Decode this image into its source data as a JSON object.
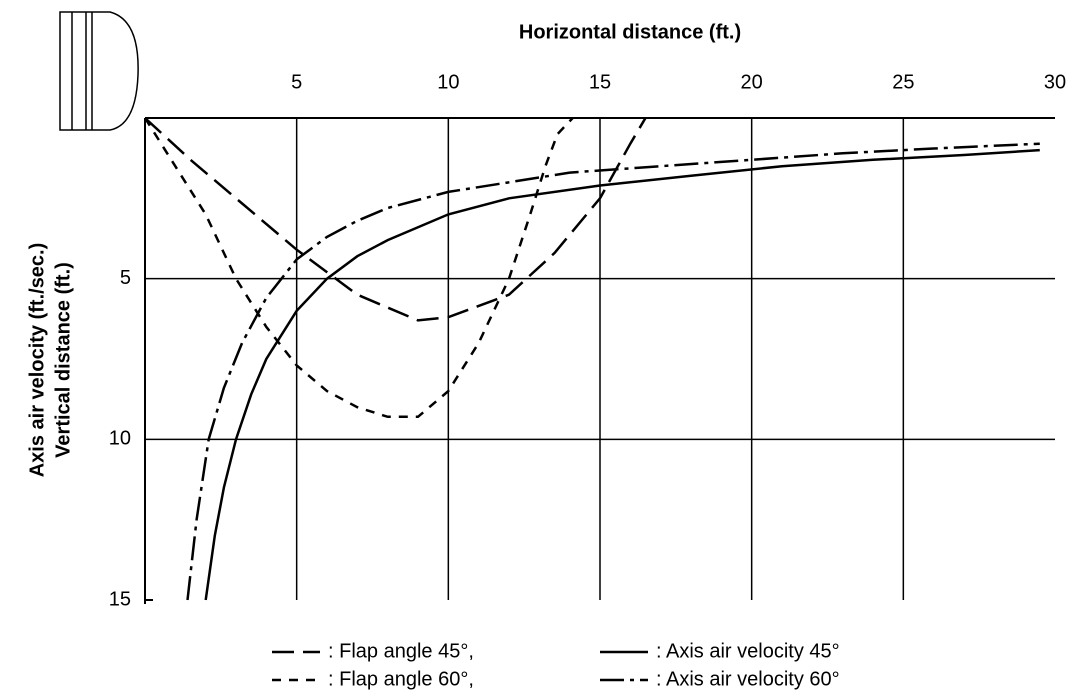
{
  "chart_data": {
    "type": "line",
    "x_label": "Horizontal distance (ft.)",
    "y_label": [
      "Axis air velocity (ft./sec.)",
      "Vertical distance (ft.)"
    ],
    "xlim": [
      0,
      30
    ],
    "ylim": [
      0,
      15
    ],
    "y_inverted": true,
    "xticks": [
      5,
      10,
      15,
      20,
      25,
      30
    ],
    "yticks": [
      5,
      10,
      15
    ],
    "grid": true,
    "series": [
      {
        "name": ": Flap angle 45°,",
        "color": "#000000",
        "style": "long-dash",
        "x": [
          0,
          1.5,
          3,
          5,
          7,
          9,
          10,
          12,
          13.5,
          15,
          16,
          16.5
        ],
        "values": [
          0,
          1.3,
          2.5,
          4.1,
          5.5,
          6.3,
          6.2,
          5.5,
          4.2,
          2.5,
          0.8,
          0
        ]
      },
      {
        "name": ": Flap angle 60°,",
        "color": "#000000",
        "style": "short-dash",
        "x": [
          0,
          1,
          2,
          3,
          4,
          5,
          6,
          7,
          8,
          9,
          10,
          11,
          12,
          12.7,
          13.2,
          13.6,
          14.1
        ],
        "values": [
          0,
          1.5,
          3,
          5,
          6.5,
          7.7,
          8.5,
          9,
          9.3,
          9.3,
          8.5,
          7,
          5,
          3,
          1.5,
          0.5,
          0
        ]
      },
      {
        "name": ": Axis air velocity 45°",
        "color": "#000000",
        "style": "solid",
        "x": [
          2,
          2.3,
          2.6,
          3,
          3.5,
          4,
          5,
          6,
          7,
          8,
          10,
          12,
          15,
          18,
          21,
          24,
          27,
          29.5
        ],
        "values": [
          15,
          13,
          11.5,
          10,
          8.6,
          7.5,
          6,
          5,
          4.3,
          3.8,
          3,
          2.5,
          2.1,
          1.8,
          1.5,
          1.3,
          1.15,
          1
        ]
      },
      {
        "name": ": Axis air velocity 60°",
        "color": "#000000",
        "style": "dash-dot",
        "x": [
          1.4,
          1.7,
          2.1,
          2.6,
          3.2,
          4,
          5,
          6,
          7,
          8,
          10,
          12,
          14,
          17,
          20,
          23,
          26,
          29.5
        ],
        "values": [
          15,
          12.5,
          10,
          8.4,
          7,
          5.6,
          4.4,
          3.7,
          3.2,
          2.8,
          2.3,
          2,
          1.7,
          1.5,
          1.3,
          1.1,
          0.95,
          0.8
        ]
      }
    ]
  }
}
